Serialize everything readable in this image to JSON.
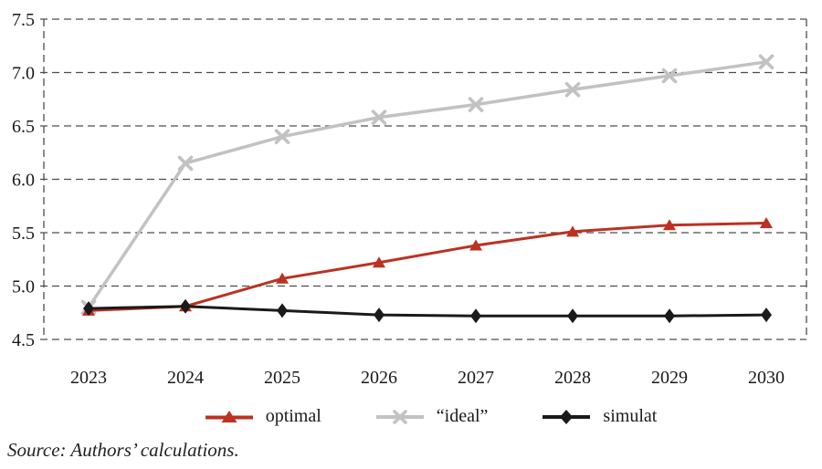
{
  "chart_data": {
    "type": "line",
    "title": "",
    "xlabel": "",
    "ylabel": "",
    "categories": [
      "2023",
      "2024",
      "2025",
      "2026",
      "2027",
      "2028",
      "2029",
      "2030"
    ],
    "series": [
      {
        "id": "optimal",
        "name": "optimal",
        "marker": "triangle",
        "color": "#bb3222",
        "values": [
          4.77,
          4.81,
          5.07,
          5.22,
          5.38,
          5.51,
          5.57,
          5.59
        ]
      },
      {
        "id": "ideal",
        "name": "“ideal”",
        "marker": "x",
        "color": "#c2c2c2",
        "values": [
          4.8,
          6.15,
          6.4,
          6.58,
          6.7,
          6.84,
          6.97,
          7.1
        ]
      },
      {
        "id": "simulat",
        "name": "simulat",
        "marker": "diamond",
        "color": "#1a1a1a",
        "values": [
          4.79,
          4.81,
          4.77,
          4.73,
          4.72,
          4.72,
          4.72,
          4.73
        ]
      }
    ],
    "ylim": [
      4.5,
      7.5
    ],
    "yticks": [
      "4.5",
      "5.0",
      "5.5",
      "6.0",
      "6.5",
      "7.0",
      "7.5"
    ],
    "grid": "horizontal-dashed",
    "legend_position": "bottom",
    "draw_order": [
      1,
      0,
      2
    ]
  },
  "source_note": "Source: Authors’ calculations."
}
